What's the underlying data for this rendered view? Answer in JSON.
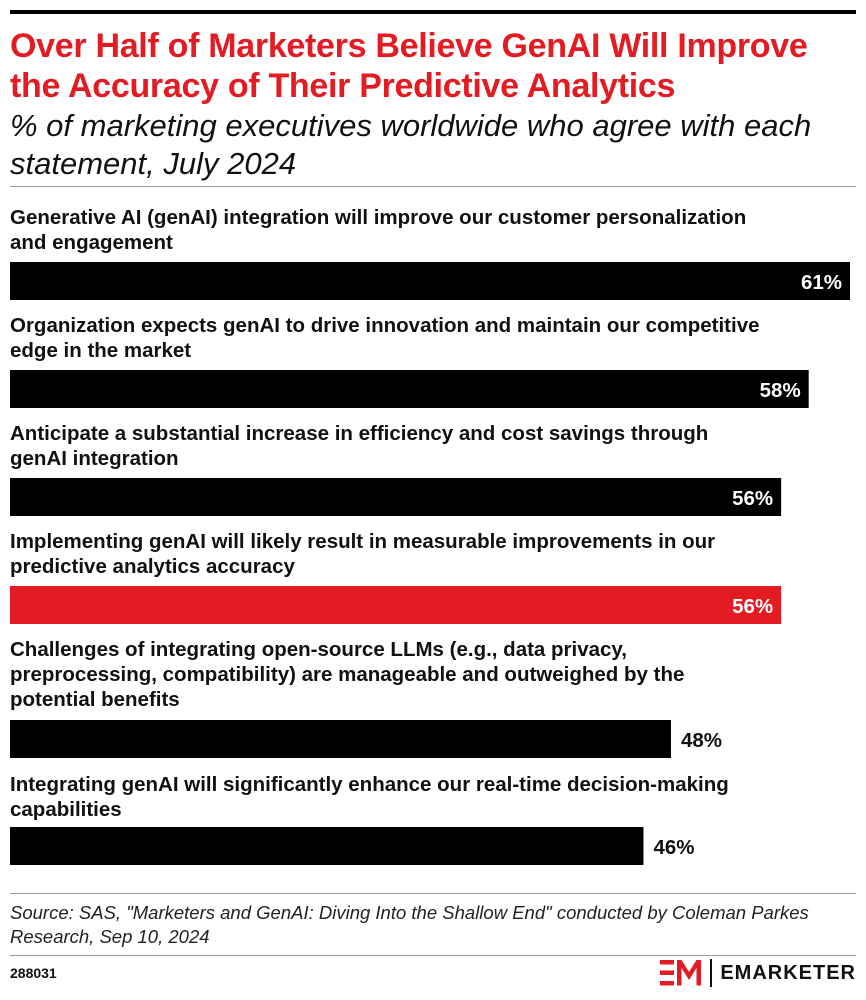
{
  "title": "Over Half of Marketers Believe GenAI Will Improve the Accuracy of Their Predictive Analytics",
  "subtitle": "% of marketing executives worldwide who agree with each statement, July 2024",
  "source": "Source: SAS, \"Marketers and GenAI: Diving Into the Shallow End\" conducted by Coleman Parkes Research, Sep 10, 2024",
  "chart_id": "288031",
  "brand": {
    "name": "EMARKETER",
    "icon": "emarketer-logo-icon"
  },
  "colors": {
    "default_bar": "#000000",
    "highlight_bar": "#e31b23",
    "title": "#e31b23"
  },
  "chart_data": {
    "type": "bar",
    "orientation": "horizontal",
    "categories": [
      [
        "Generative AI (genAI) integration will improve our customer personalization",
        "and engagement"
      ],
      [
        "Organization expects genAI to drive innovation and maintain our competitive",
        "edge in the market"
      ],
      [
        "Anticipate a substantial increase in efficiency and cost savings through",
        "genAI integration"
      ],
      [
        "Implementing genAI will likely result in measurable improvements in our",
        "predictive analytics accuracy"
      ],
      [
        "Challenges of integrating open-source LLMs (e.g., data privacy,",
        "preprocessing, compatibility) are manageable and outweighed by the",
        "potential benefits"
      ],
      [
        "Integrating genAI will significantly enhance our real-time decision-making",
        "capabilities"
      ]
    ],
    "values": [
      61,
      58,
      56,
      56,
      48,
      46
    ],
    "value_labels": [
      "61%",
      "58%",
      "56%",
      "56%",
      "48%",
      "46%"
    ],
    "highlight_index": 3,
    "xlim": [
      0,
      61
    ],
    "grid": false,
    "legend": "none"
  }
}
